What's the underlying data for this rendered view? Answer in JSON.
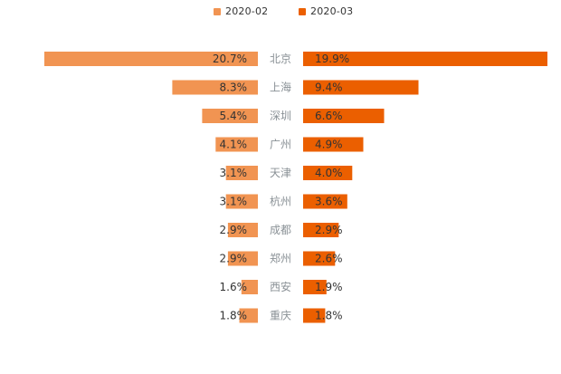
{
  "chart_data": {
    "type": "bar",
    "layout": "butterfly",
    "categories": [
      "北京",
      "上海",
      "深圳",
      "广州",
      "天津",
      "杭州",
      "成都",
      "郑州",
      "西安",
      "重庆"
    ],
    "series": [
      {
        "name": "2020-02",
        "color": "#F19452",
        "side": "left",
        "values": [
          20.7,
          8.3,
          5.4,
          4.1,
          3.1,
          3.1,
          2.9,
          2.9,
          1.6,
          1.8
        ],
        "labels": [
          "20.7%",
          "8.3%",
          "5.4%",
          "4.1%",
          "3.1%",
          "3.1%",
          "2.9%",
          "2.9%",
          "1.6%",
          "1.8%"
        ]
      },
      {
        "name": "2020-03",
        "color": "#EB5F00",
        "side": "right",
        "values": [
          19.9,
          9.4,
          6.6,
          4.9,
          4.0,
          3.6,
          2.9,
          2.6,
          1.9,
          1.8
        ],
        "labels": [
          "19.9%",
          "9.4%",
          "6.6%",
          "4.9%",
          "4.0%",
          "3.6%",
          "2.9%",
          "2.6%",
          "1.9%",
          "1.8%"
        ]
      }
    ],
    "value_unit": "%",
    "title": "",
    "xlabel": "",
    "ylabel": "",
    "legend_position": "top-center",
    "grid": false,
    "category_label_color": "#8A9196",
    "data_label_color": "#333333"
  }
}
